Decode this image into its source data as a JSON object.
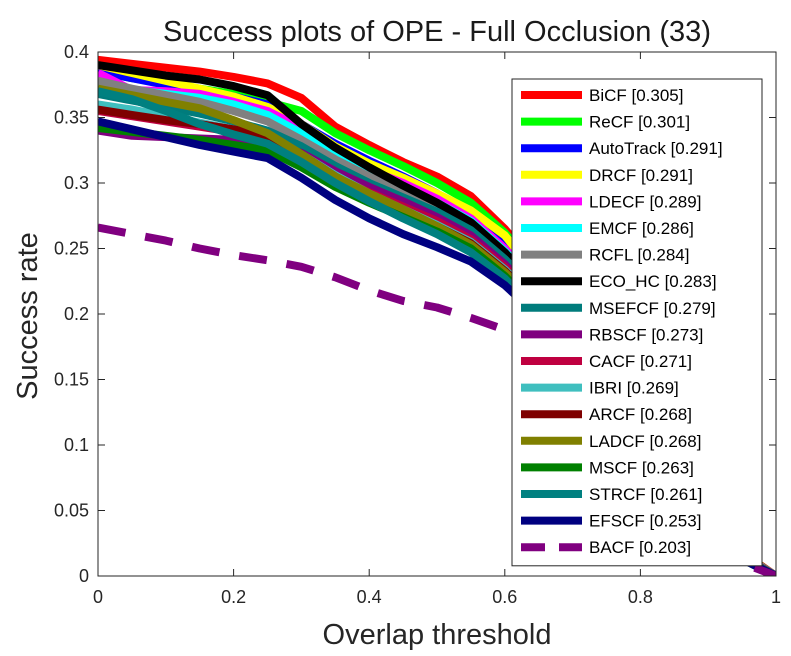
{
  "chart_data": {
    "type": "line",
    "title": "Success plots of OPE - Full Occlusion (33)",
    "xlabel": "Overlap threshold",
    "ylabel": "Success rate",
    "xlim": [
      0,
      1
    ],
    "ylim": [
      0,
      0.4
    ],
    "xticks": [
      "0",
      "0.2",
      "0.4",
      "0.6",
      "0.8",
      "1"
    ],
    "yticks": [
      "0",
      "0.05",
      "0.1",
      "0.15",
      "0.2",
      "0.25",
      "0.3",
      "0.35",
      "0.4"
    ],
    "grid": false,
    "legend_position": "top-right",
    "x": [
      0,
      0.05,
      0.1,
      0.15,
      0.2,
      0.25,
      0.3,
      0.35,
      0.4,
      0.45,
      0.5,
      0.55,
      0.6,
      0.65,
      0.7,
      0.75,
      0.8,
      0.85,
      0.9,
      0.95,
      1
    ],
    "series": [
      {
        "name": "BiCF [0.305]",
        "color": "#ff0000",
        "dashed": false,
        "values": [
          0.394,
          0.391,
          0.388,
          0.385,
          0.381,
          0.376,
          0.365,
          0.343,
          0.329,
          0.316,
          0.305,
          0.29,
          0.265,
          0.235,
          0.2,
          0.165,
          0.125,
          0.085,
          0.048,
          0.018,
          0.0
        ]
      },
      {
        "name": "ReCF [0.301]",
        "color": "#00ff00",
        "dashed": false,
        "values": [
          0.385,
          0.38,
          0.376,
          0.372,
          0.368,
          0.362,
          0.355,
          0.338,
          0.325,
          0.313,
          0.3,
          0.285,
          0.262,
          0.232,
          0.198,
          0.162,
          0.122,
          0.083,
          0.046,
          0.017,
          0.0
        ]
      },
      {
        "name": "AutoTrack [0.291]",
        "color": "#0000ff",
        "dashed": false,
        "values": [
          0.385,
          0.38,
          0.375,
          0.37,
          0.366,
          0.36,
          0.345,
          0.33,
          0.317,
          0.305,
          0.292,
          0.276,
          0.252,
          0.224,
          0.19,
          0.155,
          0.117,
          0.079,
          0.044,
          0.016,
          0.0
        ]
      },
      {
        "name": "DRCF [0.291]",
        "color": "#ffff00",
        "dashed": false,
        "values": [
          0.39,
          0.384,
          0.378,
          0.372,
          0.366,
          0.358,
          0.345,
          0.328,
          0.315,
          0.304,
          0.292,
          0.279,
          0.26,
          0.228,
          0.193,
          0.157,
          0.118,
          0.08,
          0.045,
          0.016,
          0.0
        ]
      },
      {
        "name": "LDECF [0.289]",
        "color": "#ff00ff",
        "dashed": false,
        "values": [
          0.384,
          0.371,
          0.37,
          0.368,
          0.362,
          0.355,
          0.342,
          0.325,
          0.31,
          0.3,
          0.288,
          0.273,
          0.25,
          0.222,
          0.188,
          0.153,
          0.116,
          0.078,
          0.043,
          0.016,
          0.0
        ]
      },
      {
        "name": "EMCF [0.286]",
        "color": "#00ffff",
        "dashed": false,
        "values": [
          0.375,
          0.371,
          0.368,
          0.365,
          0.36,
          0.352,
          0.338,
          0.322,
          0.308,
          0.297,
          0.285,
          0.271,
          0.248,
          0.22,
          0.186,
          0.151,
          0.114,
          0.077,
          0.042,
          0.015,
          0.0
        ]
      },
      {
        "name": "RCFL [0.284]",
        "color": "#808080",
        "dashed": false,
        "values": [
          0.378,
          0.372,
          0.367,
          0.362,
          0.355,
          0.347,
          0.333,
          0.318,
          0.305,
          0.294,
          0.283,
          0.268,
          0.245,
          0.218,
          0.185,
          0.15,
          0.113,
          0.076,
          0.042,
          0.015,
          0.0
        ]
      },
      {
        "name": "ECO_HC [0.283]",
        "color": "#000000",
        "dashed": false,
        "values": [
          0.39,
          0.386,
          0.382,
          0.379,
          0.374,
          0.367,
          0.345,
          0.327,
          0.312,
          0.298,
          0.285,
          0.27,
          0.247,
          0.219,
          0.185,
          0.15,
          0.113,
          0.076,
          0.042,
          0.015,
          0.0
        ]
      },
      {
        "name": "MSEFCF [0.279]",
        "color": "#007c7c",
        "dashed": false,
        "values": [
          0.368,
          0.363,
          0.358,
          0.353,
          0.347,
          0.34,
          0.328,
          0.313,
          0.3,
          0.289,
          0.278,
          0.264,
          0.242,
          0.215,
          0.182,
          0.148,
          0.111,
          0.075,
          0.041,
          0.015,
          0.0
        ]
      },
      {
        "name": "RBSCF [0.273]",
        "color": "#7f007f",
        "dashed": false,
        "values": [
          0.34,
          0.336,
          0.335,
          0.334,
          0.333,
          0.331,
          0.323,
          0.309,
          0.297,
          0.286,
          0.274,
          0.26,
          0.238,
          0.211,
          0.179,
          0.145,
          0.109,
          0.074,
          0.04,
          0.014,
          0.0
        ]
      },
      {
        "name": "CACF [0.271]",
        "color": "#bf0040",
        "dashed": false,
        "values": [
          0.355,
          0.351,
          0.347,
          0.343,
          0.339,
          0.333,
          0.32,
          0.305,
          0.293,
          0.282,
          0.271,
          0.257,
          0.236,
          0.209,
          0.177,
          0.143,
          0.108,
          0.073,
          0.04,
          0.014,
          0.0
        ]
      },
      {
        "name": "IBRI [0.269]",
        "color": "#3fbfbf",
        "dashed": false,
        "values": [
          0.36,
          0.356,
          0.351,
          0.346,
          0.341,
          0.335,
          0.322,
          0.306,
          0.292,
          0.28,
          0.268,
          0.255,
          0.234,
          0.208,
          0.176,
          0.142,
          0.107,
          0.072,
          0.039,
          0.014,
          0.0
        ]
      },
      {
        "name": "ARCF [0.268]",
        "color": "#7f0000",
        "dashed": false,
        "values": [
          0.356,
          0.352,
          0.348,
          0.345,
          0.341,
          0.336,
          0.322,
          0.305,
          0.291,
          0.279,
          0.267,
          0.254,
          0.233,
          0.207,
          0.175,
          0.142,
          0.106,
          0.072,
          0.039,
          0.014,
          0.0
        ]
      },
      {
        "name": "LADCF [0.268]",
        "color": "#808000",
        "dashed": false,
        "values": [
          0.372,
          0.367,
          0.362,
          0.357,
          0.348,
          0.338,
          0.322,
          0.305,
          0.292,
          0.28,
          0.267,
          0.253,
          0.232,
          0.206,
          0.174,
          0.141,
          0.106,
          0.071,
          0.039,
          0.014,
          0.0
        ]
      },
      {
        "name": "MSCF [0.263]",
        "color": "#008000",
        "dashed": false,
        "values": [
          0.342,
          0.339,
          0.336,
          0.333,
          0.329,
          0.325,
          0.312,
          0.297,
          0.285,
          0.274,
          0.263,
          0.25,
          0.229,
          0.203,
          0.172,
          0.139,
          0.104,
          0.07,
          0.038,
          0.013,
          0.0
        ]
      },
      {
        "name": "STRCF [0.261]",
        "color": "#008080",
        "dashed": false,
        "values": [
          0.37,
          0.364,
          0.355,
          0.345,
          0.337,
          0.33,
          0.316,
          0.3,
          0.286,
          0.273,
          0.261,
          0.247,
          0.227,
          0.201,
          0.17,
          0.138,
          0.103,
          0.07,
          0.038,
          0.013,
          0.0
        ]
      },
      {
        "name": "EFSCF [0.253]",
        "color": "#000080",
        "dashed": false,
        "values": [
          0.347,
          0.341,
          0.335,
          0.329,
          0.324,
          0.319,
          0.304,
          0.287,
          0.273,
          0.261,
          0.251,
          0.24,
          0.222,
          0.198,
          0.168,
          0.136,
          0.102,
          0.069,
          0.037,
          0.013,
          0.0
        ]
      },
      {
        "name": "BACF [0.203]",
        "color": "#800080",
        "dashed": true,
        "values": [
          0.266,
          0.261,
          0.256,
          0.25,
          0.245,
          0.241,
          0.236,
          0.228,
          0.218,
          0.21,
          0.205,
          0.197,
          0.188,
          0.17,
          0.145,
          0.118,
          0.088,
          0.058,
          0.03,
          0.01,
          0.0
        ]
      }
    ]
  }
}
